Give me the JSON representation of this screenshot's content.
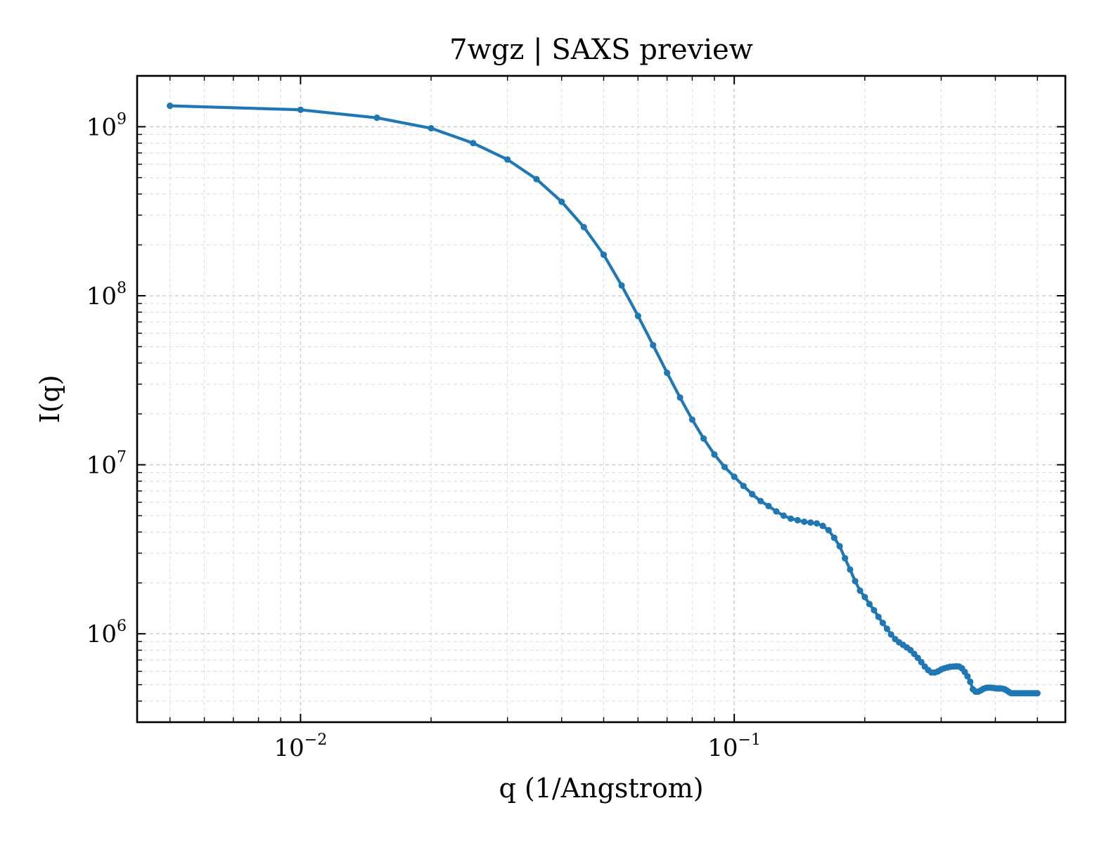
{
  "chart_data": {
    "type": "line",
    "title": "7wgz | SAXS preview",
    "xlabel": "q (1/Angstrom)",
    "ylabel": "I(q)",
    "xscale": "log",
    "yscale": "log",
    "xlim": [
      0.0042,
      0.58
    ],
    "ylim": [
      300000,
      2000000000
    ],
    "grid": true,
    "legend": "none",
    "color": "#1f77b4",
    "x_ticks": [
      {
        "value": 0.01,
        "base": "10",
        "exp": "−2"
      },
      {
        "value": 0.1,
        "base": "10",
        "exp": "−1"
      }
    ],
    "y_ticks": [
      {
        "value": 1000000,
        "base": "10",
        "exp": "6"
      },
      {
        "value": 10000000,
        "base": "10",
        "exp": "7"
      },
      {
        "value": 100000000,
        "base": "10",
        "exp": "8"
      },
      {
        "value": 1000000000,
        "base": "10",
        "exp": "9"
      }
    ],
    "series": [
      {
        "x": [
          0.005,
          0.01,
          0.015,
          0.02,
          0.025,
          0.03,
          0.035,
          0.04,
          0.045,
          0.05,
          0.055,
          0.06,
          0.065,
          0.07,
          0.075,
          0.08,
          0.085,
          0.09,
          0.095,
          0.1,
          0.105,
          0.11,
          0.115,
          0.12,
          0.125,
          0.13,
          0.135,
          0.14,
          0.145,
          0.15,
          0.155,
          0.16,
          0.165,
          0.17,
          0.175,
          0.18,
          0.185,
          0.19,
          0.195,
          0.2,
          0.205,
          0.21,
          0.215,
          0.22,
          0.225,
          0.23,
          0.235,
          0.24,
          0.245,
          0.25,
          0.255,
          0.26,
          0.265,
          0.27,
          0.275,
          0.28,
          0.285,
          0.29,
          0.295,
          0.3,
          0.305,
          0.31,
          0.315,
          0.32,
          0.325,
          0.33,
          0.335,
          0.34,
          0.345,
          0.35,
          0.355,
          0.36,
          0.365,
          0.37,
          0.375,
          0.38,
          0.385,
          0.39,
          0.395,
          0.4,
          0.405,
          0.41,
          0.415,
          0.42,
          0.425,
          0.43,
          0.435,
          0.44,
          0.445,
          0.45,
          0.455,
          0.46,
          0.465,
          0.47,
          0.475,
          0.48,
          0.485,
          0.49,
          0.495,
          0.5
        ],
        "y": [
          1330000000,
          1260000000,
          1130000000,
          980000000,
          800000000,
          640000000,
          490000000,
          360000000,
          255000000,
          175000000,
          115000000,
          76000000,
          51000000,
          35000000,
          25000000,
          18500000,
          14300000,
          11500000,
          9700000,
          8500000,
          7500000,
          6700000,
          6100000,
          5700000,
          5300000,
          5000000,
          4800000,
          4700000,
          4600000,
          4550000,
          4500000,
          4350000,
          4100000,
          3700000,
          3300000,
          2800000,
          2400000,
          2050000,
          1800000,
          1650000,
          1500000,
          1380000,
          1260000,
          1160000,
          1070000,
          990000,
          930000,
          890000,
          860000,
          830000,
          800000,
          760000,
          720000,
          680000,
          640000,
          610000,
          590000,
          590000,
          600000,
          615000,
          625000,
          632000,
          638000,
          640000,
          642000,
          640000,
          625000,
          595000,
          560000,
          520000,
          470000,
          455000,
          455000,
          462000,
          472000,
          478000,
          480000,
          480000,
          478000,
          476000,
          475000,
          475000,
          474000,
          470000,
          462000,
          452000,
          445000,
          445000,
          445000,
          445000,
          445000,
          445000,
          445000,
          445000,
          445000,
          445000,
          445000,
          445000,
          445000,
          445000
        ]
      }
    ]
  }
}
